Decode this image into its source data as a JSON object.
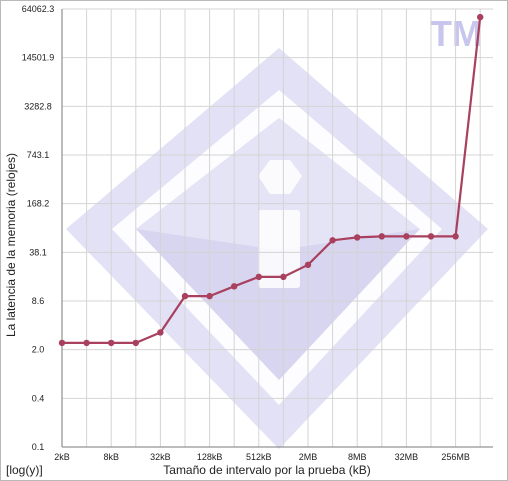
{
  "watermark": {
    "text": "TM"
  },
  "colors": {
    "line": "#a8405e",
    "grid": "#d4d4d4",
    "watermark": "#c8c6ec",
    "watermark_dark": "#a9a4dd"
  },
  "chart_data": {
    "type": "line",
    "title": "",
    "xlabel": "Tamaño de intervalo por la prueba (kB)",
    "ylabel": "La latencia de la memoria (relojes)",
    "scale_label": "[log(y)]",
    "y_scale": "log",
    "ylim": [
      0.1,
      64062.3
    ],
    "y_ticks": [
      "0.1",
      "0.4",
      "2.0",
      "8.6",
      "38.1",
      "168.2",
      "743.1",
      "3282.8",
      "14501.9",
      "64062.3"
    ],
    "x_ticks": [
      "2kB",
      "8kB",
      "32kB",
      "128kB",
      "512kB",
      "2MB",
      "8MB",
      "32MB",
      "256MB"
    ],
    "grid": true,
    "legend": "none",
    "series": [
      {
        "values": [
          2.4,
          2.4,
          2.4,
          2.4,
          3.3,
          10.0,
          10.0,
          13.5,
          18.0,
          18.0,
          26.0,
          55.0,
          60.0,
          62.0,
          62.0,
          62.0,
          62.0,
          50000
        ]
      }
    ]
  }
}
